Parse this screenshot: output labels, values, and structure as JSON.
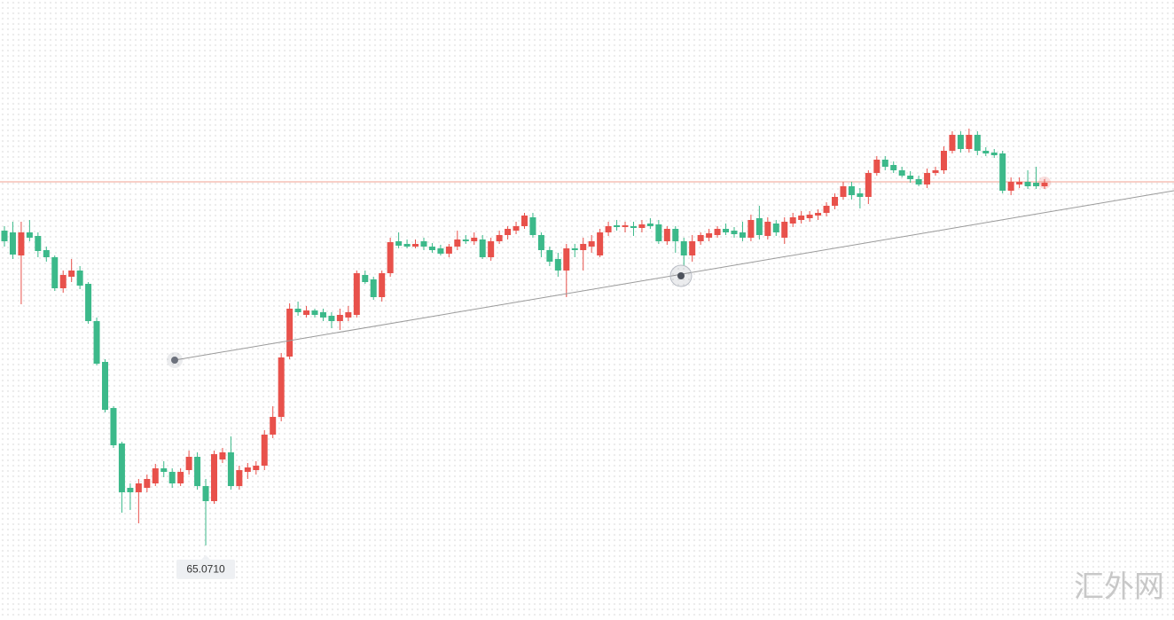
{
  "chart_data": {
    "type": "candlestick",
    "ylim": [
      64.28,
      71.22
    ],
    "up_color": "#e8514b",
    "down_color": "#3cb98a",
    "series": [
      {
        "open": [
          68.62,
          68.6,
          68.34,
          68.6,
          68.56,
          68.4,
          68.32,
          67.97,
          68.1,
          68.17,
          68.02,
          67.6,
          67.14,
          66.62,
          66.22,
          65.72,
          65.67,
          65.72,
          65.77,
          65.94,
          65.9,
          65.77,
          65.92,
          66.07,
          65.74,
          65.57,
          66.04,
          66.12,
          65.74,
          65.9,
          65.92,
          65.97,
          66.32,
          66.52,
          67.2,
          67.74,
          67.67,
          67.72,
          67.7,
          67.66,
          67.6,
          67.64,
          67.67,
          68.12,
          68.07,
          67.87,
          68.14,
          68.5,
          68.47,
          68.44,
          68.5,
          68.44,
          68.42,
          68.36,
          68.44,
          68.52,
          68.5,
          68.52,
          68.32,
          68.5,
          68.57,
          68.62,
          68.67,
          68.77,
          68.57,
          68.4,
          68.3,
          68.17,
          68.42,
          68.4,
          68.44,
          68.34,
          68.6,
          68.68,
          68.66,
          68.67,
          68.65,
          68.7,
          68.69,
          68.5,
          68.64,
          68.5,
          68.34,
          68.5,
          68.54,
          68.57,
          68.64,
          68.62,
          68.6,
          68.54,
          68.76,
          68.56,
          68.7,
          68.54,
          68.7,
          68.74,
          68.76,
          68.79,
          68.82,
          68.9,
          69.0,
          69.12,
          69.04,
          69.0,
          69.27,
          69.42,
          69.36,
          69.3,
          69.24,
          69.2,
          69.14,
          69.27,
          69.3,
          69.52,
          69.7,
          69.54,
          69.7,
          69.52,
          69.5,
          69.49,
          69.07,
          69.14,
          69.17,
          69.16,
          69.12
        ],
        "high": [
          68.67,
          68.72,
          68.72,
          68.74,
          68.6,
          68.44,
          68.34,
          68.17,
          68.3,
          68.22,
          68.04,
          67.64,
          67.17,
          66.64,
          66.24,
          65.77,
          65.82,
          65.87,
          65.99,
          66.02,
          65.94,
          65.94,
          66.14,
          66.12,
          65.82,
          66.14,
          66.17,
          66.3,
          65.97,
          66.0,
          66.02,
          66.37,
          66.64,
          67.24,
          67.8,
          67.82,
          67.77,
          67.74,
          67.74,
          67.7,
          67.74,
          67.77,
          68.17,
          68.17,
          68.1,
          68.17,
          68.54,
          68.6,
          68.52,
          68.52,
          68.54,
          68.48,
          68.46,
          68.47,
          68.62,
          68.57,
          68.6,
          68.57,
          68.54,
          68.62,
          68.67,
          68.72,
          68.82,
          68.82,
          68.6,
          68.44,
          68.37,
          68.47,
          68.47,
          68.54,
          68.57,
          68.64,
          68.72,
          68.74,
          68.72,
          68.72,
          68.74,
          68.76,
          68.74,
          68.67,
          68.67,
          68.54,
          68.57,
          68.6,
          68.64,
          68.67,
          68.7,
          68.66,
          68.72,
          68.8,
          68.9,
          68.77,
          68.74,
          68.77,
          68.82,
          68.84,
          68.84,
          68.86,
          68.94,
          69.04,
          69.17,
          69.17,
          69.1,
          69.3,
          69.46,
          69.46,
          69.4,
          69.34,
          69.29,
          69.24,
          69.32,
          69.34,
          69.57,
          69.74,
          69.74,
          69.77,
          69.74,
          69.56,
          69.54,
          69.52,
          69.22,
          69.22,
          69.3,
          69.34,
          69.2
        ],
        "low": [
          68.44,
          68.3,
          67.79,
          68.5,
          68.32,
          68.27,
          67.94,
          67.92,
          68.04,
          67.96,
          67.57,
          67.1,
          66.57,
          66.17,
          65.44,
          65.47,
          65.32,
          65.67,
          65.74,
          65.84,
          65.72,
          65.74,
          65.87,
          65.7,
          65.071,
          65.54,
          66.0,
          65.7,
          65.7,
          65.82,
          65.87,
          65.92,
          66.28,
          66.47,
          67.17,
          67.66,
          67.64,
          67.64,
          67.6,
          67.52,
          67.5,
          67.6,
          67.64,
          68.02,
          67.84,
          67.82,
          68.1,
          68.42,
          68.42,
          68.42,
          68.4,
          68.37,
          68.34,
          68.32,
          68.4,
          68.47,
          68.46,
          68.3,
          68.28,
          68.47,
          68.52,
          68.58,
          68.64,
          68.54,
          68.32,
          68.22,
          68.1,
          67.87,
          68.32,
          68.17,
          68.37,
          68.32,
          68.56,
          68.62,
          68.6,
          68.56,
          68.6,
          68.64,
          68.47,
          68.46,
          68.37,
          68.22,
          68.27,
          68.46,
          68.5,
          68.54,
          68.57,
          68.54,
          68.5,
          68.5,
          68.52,
          68.52,
          68.56,
          68.47,
          68.66,
          68.7,
          68.72,
          68.74,
          68.78,
          68.86,
          68.97,
          68.97,
          68.87,
          68.92,
          69.24,
          69.3,
          69.27,
          69.22,
          69.16,
          69.12,
          69.1,
          69.24,
          69.26,
          69.49,
          69.5,
          69.5,
          69.47,
          69.46,
          69.44,
          69.04,
          69.02,
          69.1,
          69.09,
          69.09,
          69.09
        ],
        "close": [
          68.5,
          68.35,
          68.6,
          68.54,
          68.39,
          68.32,
          67.97,
          68.12,
          68.17,
          68.0,
          67.6,
          67.12,
          66.6,
          66.2,
          65.67,
          65.67,
          65.77,
          65.82,
          65.94,
          65.9,
          65.77,
          65.9,
          66.07,
          65.74,
          65.57,
          66.1,
          66.12,
          65.74,
          65.92,
          65.95,
          65.97,
          66.32,
          66.52,
          67.19,
          67.74,
          67.7,
          67.72,
          67.67,
          67.64,
          67.6,
          67.67,
          67.7,
          68.14,
          68.04,
          67.87,
          68.14,
          68.49,
          68.45,
          68.44,
          68.47,
          68.44,
          68.4,
          68.36,
          68.44,
          68.52,
          68.5,
          68.54,
          68.32,
          68.5,
          68.57,
          68.64,
          68.67,
          68.79,
          68.57,
          68.4,
          68.27,
          68.17,
          68.42,
          68.4,
          68.47,
          68.5,
          68.6,
          68.67,
          68.66,
          68.68,
          68.65,
          68.69,
          68.67,
          68.5,
          68.64,
          68.5,
          68.34,
          68.5,
          68.57,
          68.59,
          68.64,
          68.6,
          68.58,
          68.54,
          68.74,
          68.57,
          68.72,
          68.6,
          68.72,
          68.77,
          68.79,
          68.8,
          68.82,
          68.9,
          69.0,
          69.12,
          69.02,
          69.0,
          69.27,
          69.42,
          69.34,
          69.3,
          69.24,
          69.2,
          69.14,
          69.27,
          69.3,
          69.52,
          69.7,
          69.54,
          69.7,
          69.52,
          69.49,
          69.47,
          69.07,
          69.17,
          69.17,
          69.12,
          69.12,
          69.16
        ]
      }
    ],
    "price_line": {
      "value": 69.17,
      "color": "#f0a090"
    },
    "low_label": {
      "value": 65.071,
      "label": "65.0710"
    },
    "watermark": "汇外网"
  }
}
